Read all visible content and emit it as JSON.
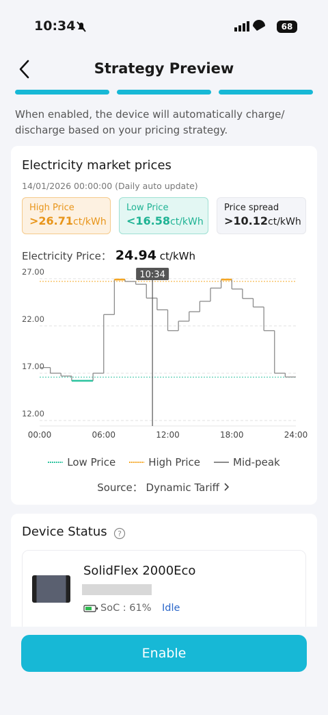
{
  "status_bar": {
    "time": "10:34",
    "battery": "68"
  },
  "header": {
    "title": "Strategy Preview"
  },
  "description": [
    "When enabled, the device will automatically charge/",
    "discharge based on your pricing strategy."
  ],
  "prices_card": {
    "title": "Electricity market prices",
    "updated": "14/01/2026 00:00:00",
    "update_note": "(Daily auto update)",
    "pills": [
      {
        "label": "High Price",
        "value": ">26.71",
        "unit": "ct/kWh"
      },
      {
        "label": "Low Price",
        "value": "<16.58",
        "unit": "ct/kWh"
      },
      {
        "label": "Price spread",
        "value": ">10.12",
        "unit": "ct/kWh"
      }
    ],
    "current_price": {
      "label": "Electricity Price：",
      "value": "24.94",
      "unit": "ct/kWh"
    },
    "source": {
      "label": "Source：",
      "value": "Dynamic Tariff"
    }
  },
  "chart_data": {
    "type": "line",
    "step": true,
    "x": [
      0,
      1,
      2,
      3,
      4,
      5,
      6,
      7,
      8,
      9,
      10,
      11,
      12,
      13,
      14,
      15,
      16,
      17,
      18,
      19,
      20,
      21,
      22,
      23
    ],
    "values": [
      17.6,
      17.0,
      16.7,
      16.2,
      16.2,
      17.0,
      23.2,
      26.9,
      26.7,
      26.4,
      24.94,
      23.7,
      21.5,
      22.5,
      23.5,
      24.6,
      26.0,
      26.9,
      25.9,
      24.9,
      24.0,
      21.5,
      17.0,
      16.6
    ],
    "color": "#8a8a8a",
    "xlim": [
      0,
      24
    ],
    "xticks": [
      {
        "value": 0,
        "label": "00:00"
      },
      {
        "value": 6,
        "label": "06:00"
      },
      {
        "value": 12,
        "label": "12:00"
      },
      {
        "value": 18,
        "label": "18:00"
      },
      {
        "value": 24,
        "label": "24:00"
      }
    ],
    "ylim": [
      12,
      28
    ],
    "yticks": [
      {
        "value": 12,
        "label": "12.00"
      },
      {
        "value": 17,
        "label": "17.00"
      },
      {
        "value": 22,
        "label": "22.00"
      },
      {
        "value": 27,
        "label": "27.00"
      }
    ],
    "grid": true,
    "low_line": 16.58,
    "high_line": 26.71,
    "marker": {
      "x": 10.567,
      "label": "10:34"
    },
    "legend": [
      {
        "name": "Low Price",
        "color": "#2ec4a0"
      },
      {
        "name": "High Price",
        "color": "#f5a623"
      },
      {
        "name": "Mid-peak",
        "color": "#8a8a8a"
      }
    ]
  },
  "device_status": {
    "title": "Device Status",
    "device": {
      "name": "SolidFlex 2000Eco",
      "soc": "SoC : 61%",
      "state": "Idle"
    }
  },
  "button": {
    "label": "Enable"
  }
}
